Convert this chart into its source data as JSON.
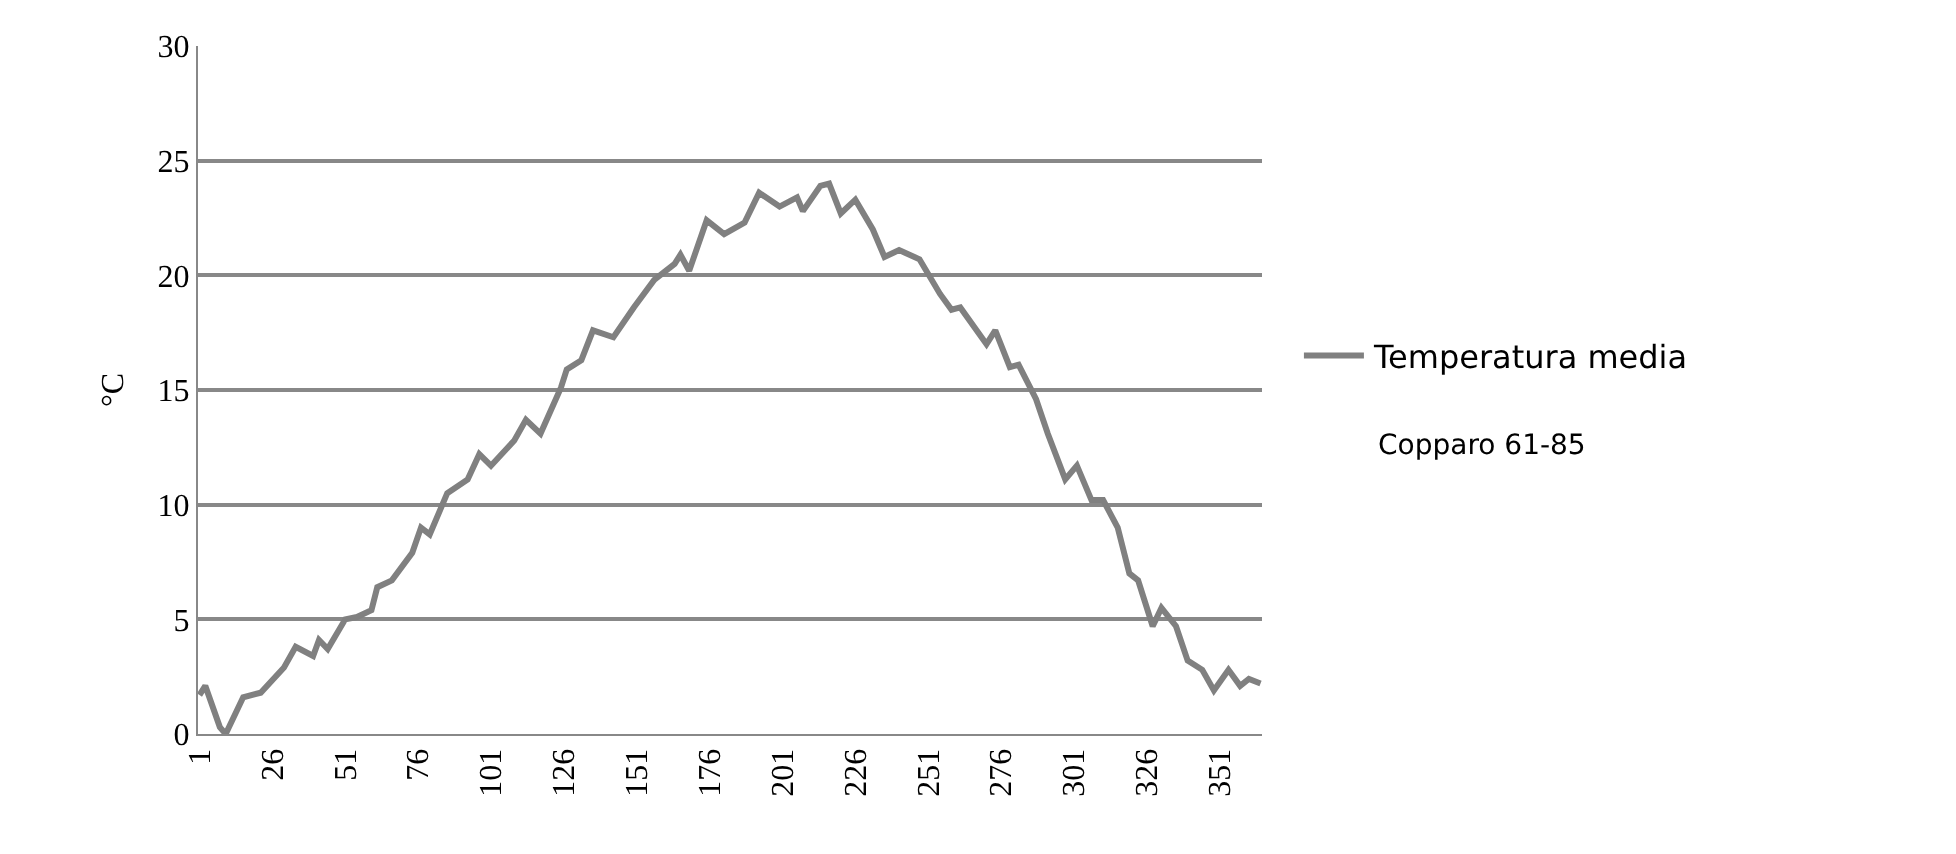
{
  "chart_data": {
    "type": "line",
    "ylabel": "°C",
    "x": [
      1,
      3,
      8,
      10,
      16,
      22,
      30,
      34,
      40,
      42,
      45,
      51,
      55,
      60,
      62,
      67,
      74,
      77,
      80,
      86,
      93,
      97,
      101,
      109,
      113,
      118,
      125,
      127,
      132,
      136,
      143,
      150,
      157,
      164,
      166,
      169,
      175,
      181,
      188,
      193,
      200,
      206,
      208,
      214,
      217,
      221,
      226,
      232,
      236,
      241,
      248,
      255,
      259,
      262,
      271,
      274,
      279,
      282,
      288,
      292,
      298,
      302,
      307,
      311,
      316,
      320,
      323,
      328,
      331,
      336,
      340,
      345,
      349,
      354,
      358,
      361,
      365
    ],
    "series": [
      {
        "name": "Temperatura media",
        "color": "#808080",
        "values": [
          1.7,
          2.1,
          0.3,
          0,
          1.6,
          1.8,
          2.9,
          3.8,
          3.4,
          4.1,
          3.7,
          5.0,
          5.1,
          5.4,
          6.4,
          6.7,
          7.9,
          9.0,
          8.7,
          10.5,
          11.1,
          12.2,
          11.7,
          12.8,
          13.7,
          13.1,
          15.1,
          15.9,
          16.3,
          17.6,
          17.3,
          18.6,
          19.8,
          20.5,
          20.9,
          20.2,
          22.4,
          21.8,
          22.3,
          23.6,
          23.0,
          23.4,
          22.8,
          23.9,
          24.0,
          22.7,
          23.3,
          22.0,
          20.8,
          21.1,
          20.7,
          19.2,
          18.5,
          18.6,
          17.0,
          17.6,
          16.0,
          16.1,
          14.6,
          13.1,
          11.1,
          11.7,
          10.2,
          10.2,
          9.0,
          7.0,
          6.7,
          4.7,
          5.5,
          4.7,
          3.2,
          2.8,
          1.9,
          2.8,
          2.1,
          2.4,
          2.2
        ]
      }
    ],
    "xlim": [
      0.5,
      365.5
    ],
    "xticks": [
      1,
      26,
      51,
      76,
      101,
      126,
      151,
      176,
      201,
      226,
      251,
      276,
      301,
      326,
      351
    ],
    "ylim": [
      0,
      30
    ],
    "yticks": [
      0,
      5,
      10,
      15,
      20,
      25,
      30
    ],
    "grid": "y",
    "legend": "right",
    "line_style": "solid",
    "marker": "none",
    "annotations": [
      "Copparo 61-85"
    ]
  }
}
